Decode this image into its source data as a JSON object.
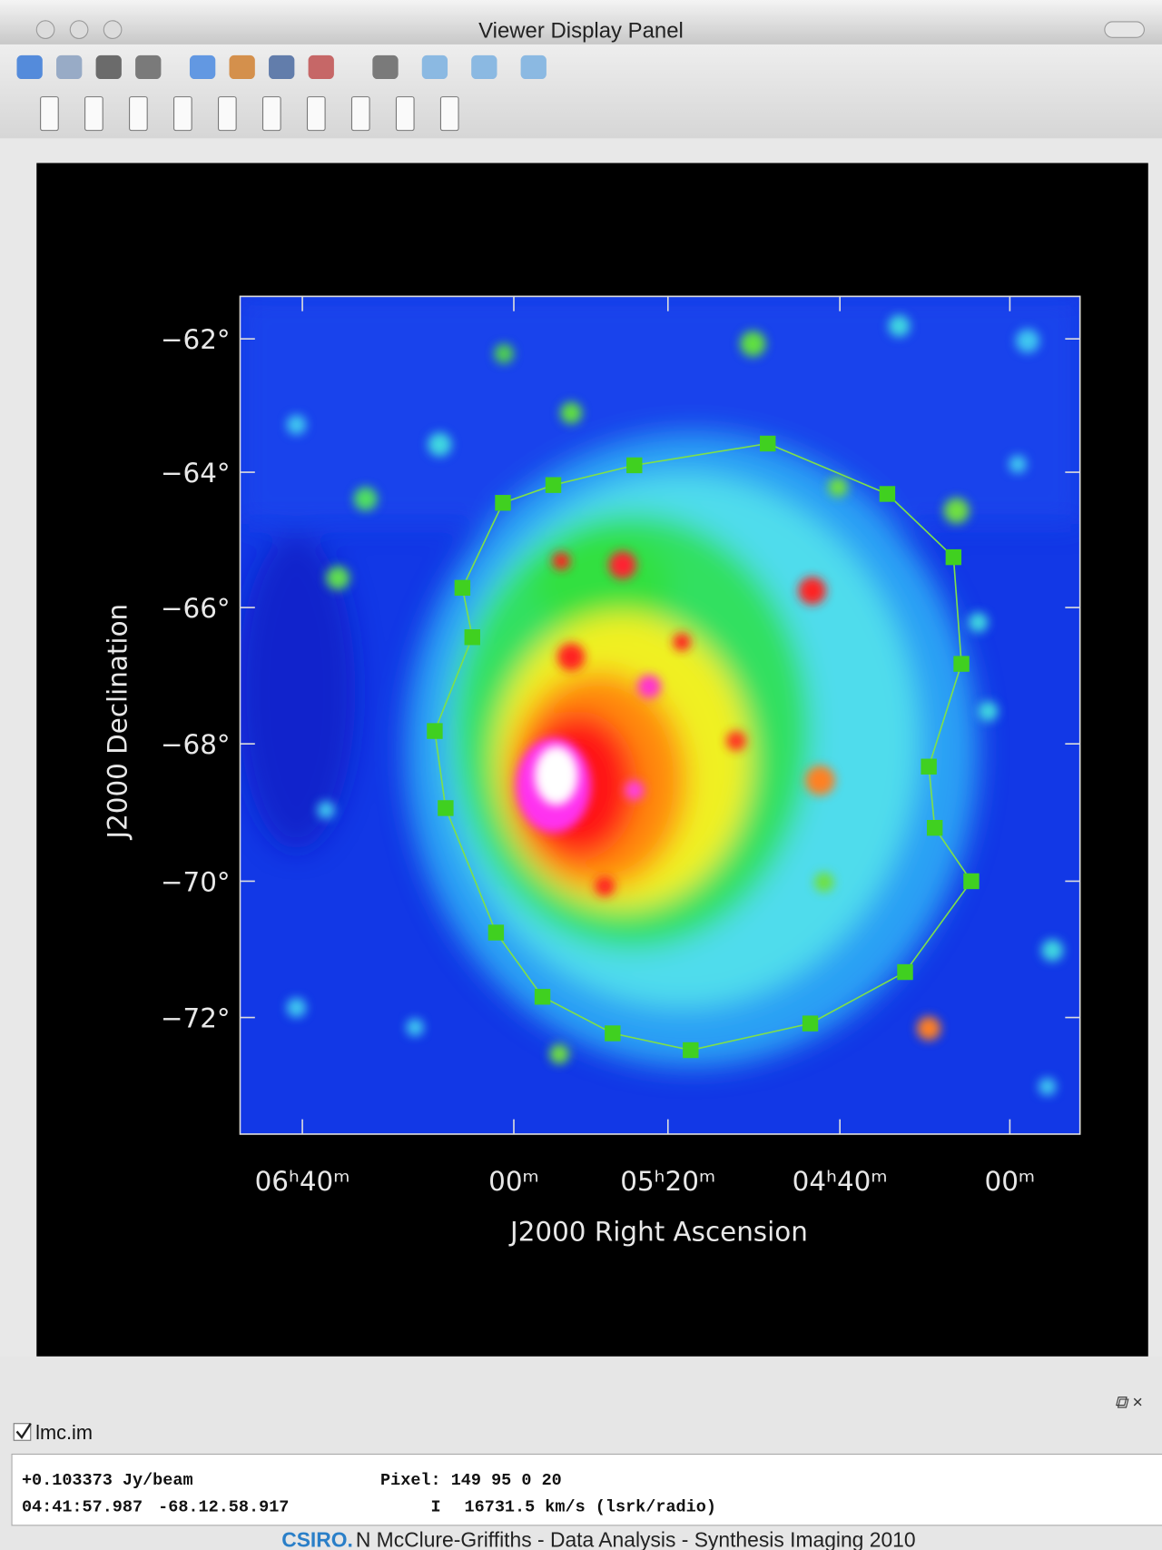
{
  "window": {
    "title": "Viewer Display Panel"
  },
  "plot": {
    "y_axis": {
      "label": "J2000 Declination",
      "ticks": [
        "−62°",
        "−64°",
        "−66°",
        "−68°",
        "−70°",
        "−72°"
      ]
    },
    "x_axis": {
      "label": "J2000 Right Ascension",
      "ticks": [
        "06ʰ40ᵐ",
        "00ᵐ",
        "05ʰ20ᵐ",
        "04ʰ40ᵐ",
        "00ᵐ"
      ]
    }
  },
  "layer": {
    "label": "lmc.im"
  },
  "status": {
    "line1": [
      "+0.103373 Jy/beam",
      "Pixel: 149 95 0 20"
    ],
    "line2": [
      "04:41:57.987",
      "-68.12.58.917",
      "I",
      "16731.5 km/s (lsrk/radio)"
    ]
  },
  "footer": {
    "org": "CSIRO.",
    "text": "N McClure-Griffiths - Data Analysis - Synthesis Imaging 2010"
  }
}
